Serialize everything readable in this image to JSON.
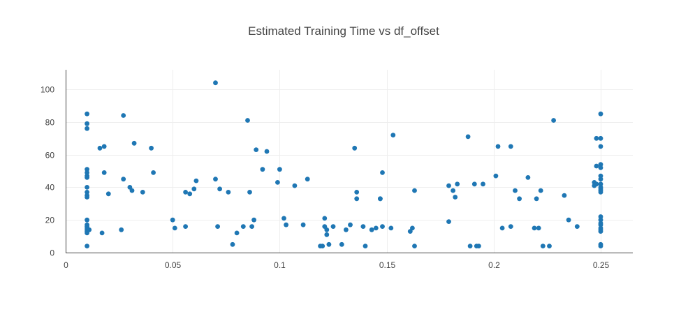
{
  "chart_data": {
    "type": "scatter",
    "title": "Estimated Training Time vs df_offset",
    "xlabel": "",
    "ylabel": "",
    "xlim": [
      0,
      0.265
    ],
    "ylim": [
      0,
      112
    ],
    "grid": true,
    "legend": "none",
    "color": "#1f77b4",
    "x_ticks": [
      "0",
      "0.05",
      "0.1",
      "0.15",
      "0.2",
      "0.25"
    ],
    "y_ticks": [
      "0",
      "20",
      "40",
      "60",
      "80",
      "100"
    ],
    "points": [
      [
        0.01,
        85
      ],
      [
        0.01,
        79
      ],
      [
        0.01,
        76
      ],
      [
        0.01,
        51
      ],
      [
        0.01,
        49
      ],
      [
        0.01,
        47
      ],
      [
        0.01,
        46
      ],
      [
        0.01,
        40
      ],
      [
        0.01,
        37
      ],
      [
        0.01,
        35
      ],
      [
        0.01,
        34
      ],
      [
        0.01,
        20
      ],
      [
        0.01,
        17
      ],
      [
        0.01,
        16
      ],
      [
        0.01,
        15
      ],
      [
        0.01,
        14
      ],
      [
        0.01,
        13
      ],
      [
        0.01,
        12
      ],
      [
        0.01,
        4
      ],
      [
        0.011,
        14
      ],
      [
        0.016,
        64
      ],
      [
        0.017,
        12
      ],
      [
        0.018,
        65
      ],
      [
        0.018,
        49
      ],
      [
        0.02,
        36
      ],
      [
        0.026,
        14
      ],
      [
        0.027,
        84
      ],
      [
        0.027,
        45
      ],
      [
        0.03,
        40
      ],
      [
        0.031,
        38
      ],
      [
        0.032,
        67
      ],
      [
        0.036,
        37
      ],
      [
        0.04,
        64
      ],
      [
        0.041,
        49
      ],
      [
        0.05,
        20
      ],
      [
        0.051,
        15
      ],
      [
        0.056,
        16
      ],
      [
        0.056,
        37
      ],
      [
        0.058,
        36
      ],
      [
        0.06,
        39
      ],
      [
        0.061,
        44
      ],
      [
        0.07,
        104
      ],
      [
        0.07,
        45
      ],
      [
        0.071,
        16
      ],
      [
        0.072,
        39
      ],
      [
        0.076,
        37
      ],
      [
        0.078,
        5
      ],
      [
        0.08,
        12
      ],
      [
        0.083,
        16
      ],
      [
        0.085,
        81
      ],
      [
        0.086,
        37
      ],
      [
        0.087,
        16
      ],
      [
        0.088,
        20
      ],
      [
        0.089,
        63
      ],
      [
        0.092,
        51
      ],
      [
        0.094,
        62
      ],
      [
        0.099,
        43
      ],
      [
        0.1,
        51
      ],
      [
        0.102,
        21
      ],
      [
        0.103,
        17
      ],
      [
        0.107,
        41
      ],
      [
        0.111,
        17
      ],
      [
        0.113,
        45
      ],
      [
        0.119,
        4
      ],
      [
        0.12,
        4
      ],
      [
        0.121,
        21
      ],
      [
        0.121,
        16
      ],
      [
        0.122,
        14
      ],
      [
        0.122,
        11
      ],
      [
        0.123,
        5
      ],
      [
        0.125,
        16
      ],
      [
        0.129,
        5
      ],
      [
        0.131,
        14
      ],
      [
        0.133,
        17
      ],
      [
        0.135,
        64
      ],
      [
        0.136,
        37
      ],
      [
        0.136,
        33
      ],
      [
        0.139,
        16
      ],
      [
        0.14,
        4
      ],
      [
        0.143,
        14
      ],
      [
        0.145,
        15
      ],
      [
        0.147,
        33
      ],
      [
        0.147,
        33
      ],
      [
        0.148,
        16
      ],
      [
        0.148,
        49
      ],
      [
        0.152,
        15
      ],
      [
        0.153,
        72
      ],
      [
        0.161,
        13
      ],
      [
        0.162,
        15
      ],
      [
        0.163,
        4
      ],
      [
        0.163,
        38
      ],
      [
        0.179,
        19
      ],
      [
        0.179,
        41
      ],
      [
        0.181,
        38
      ],
      [
        0.182,
        34
      ],
      [
        0.183,
        42
      ],
      [
        0.188,
        71
      ],
      [
        0.189,
        4
      ],
      [
        0.191,
        42
      ],
      [
        0.192,
        4
      ],
      [
        0.193,
        4
      ],
      [
        0.195,
        42
      ],
      [
        0.201,
        47
      ],
      [
        0.202,
        65
      ],
      [
        0.204,
        15
      ],
      [
        0.208,
        65
      ],
      [
        0.208,
        16
      ],
      [
        0.21,
        38
      ],
      [
        0.212,
        33
      ],
      [
        0.216,
        46
      ],
      [
        0.219,
        15
      ],
      [
        0.22,
        33
      ],
      [
        0.221,
        15
      ],
      [
        0.222,
        38
      ],
      [
        0.223,
        4
      ],
      [
        0.226,
        4
      ],
      [
        0.228,
        81
      ],
      [
        0.233,
        35
      ],
      [
        0.235,
        20
      ],
      [
        0.239,
        16
      ],
      [
        0.247,
        43
      ],
      [
        0.247,
        41
      ],
      [
        0.248,
        70
      ],
      [
        0.248,
        53
      ],
      [
        0.248,
        42
      ],
      [
        0.25,
        85
      ],
      [
        0.25,
        70
      ],
      [
        0.25,
        65
      ],
      [
        0.25,
        54
      ],
      [
        0.25,
        52
      ],
      [
        0.25,
        47
      ],
      [
        0.25,
        45
      ],
      [
        0.25,
        42
      ],
      [
        0.25,
        40
      ],
      [
        0.25,
        39
      ],
      [
        0.25,
        38
      ],
      [
        0.25,
        37
      ],
      [
        0.25,
        22
      ],
      [
        0.25,
        20
      ],
      [
        0.25,
        18
      ],
      [
        0.25,
        17
      ],
      [
        0.25,
        15
      ],
      [
        0.25,
        14
      ],
      [
        0.25,
        13
      ],
      [
        0.25,
        5
      ],
      [
        0.25,
        4
      ]
    ]
  }
}
